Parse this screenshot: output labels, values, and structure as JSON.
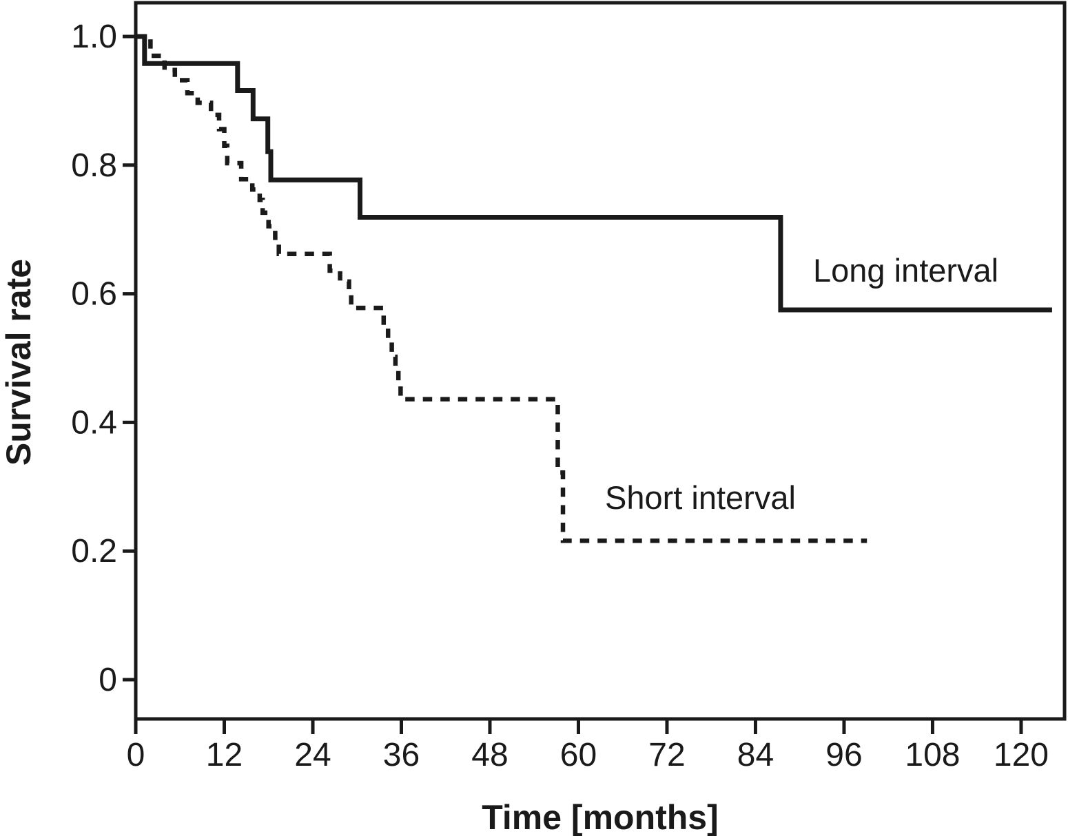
{
  "figure": {
    "background_color": "#ffffff",
    "line_color": "#1a1a1a"
  },
  "chart_data": {
    "type": "line",
    "subtype": "kaplan-meier-step",
    "title": "",
    "xlabel": "Time [months]",
    "ylabel": "Survival rate",
    "xlim": [
      0,
      126
    ],
    "ylim": [
      0,
      1.09
    ],
    "grid": false,
    "legend_position": "inline-annotations",
    "x_ticks": [
      0,
      12,
      24,
      36,
      48,
      60,
      72,
      84,
      96,
      108,
      120
    ],
    "y_ticks": [
      1.0,
      0.8,
      0.6,
      0.4,
      0.2,
      0
    ],
    "y_tick_labels": [
      "1.0",
      "0.8",
      "0.6",
      "0.4",
      "0.2",
      "0"
    ],
    "series": [
      {
        "name": "Long interval",
        "line_style": "solid",
        "color": "#1a1a1a",
        "start": [
          0,
          1.0
        ],
        "steps": [
          [
            1.2,
            0.958
          ],
          [
            13.8,
            0.916
          ],
          [
            15.9,
            0.872
          ],
          [
            17.9,
            0.821
          ],
          [
            18.3,
            0.777
          ],
          [
            30.4,
            0.719
          ],
          [
            87.4,
            0.575
          ]
        ],
        "end_time": 124.2,
        "label_anchor": [
          91.8,
          0.636
        ]
      },
      {
        "name": "Short interval",
        "line_style": "dashed",
        "color": "#1a1a1a",
        "start": [
          0,
          1.0
        ],
        "steps": [
          [
            2.0,
            0.97
          ],
          [
            3.9,
            0.948
          ],
          [
            5.3,
            0.932
          ],
          [
            7.0,
            0.912
          ],
          [
            8.4,
            0.897
          ],
          [
            10.2,
            0.878
          ],
          [
            11.3,
            0.856
          ],
          [
            12.0,
            0.83
          ],
          [
            12.4,
            0.803
          ],
          [
            14.3,
            0.778
          ],
          [
            15.8,
            0.762
          ],
          [
            16.8,
            0.746
          ],
          [
            17.2,
            0.726
          ],
          [
            18.0,
            0.705
          ],
          [
            18.9,
            0.687
          ],
          [
            19.4,
            0.662
          ],
          [
            26.3,
            0.636
          ],
          [
            27.7,
            0.619
          ],
          [
            28.9,
            0.604
          ],
          [
            29.2,
            0.578
          ],
          [
            33.6,
            0.551
          ],
          [
            34.2,
            0.528
          ],
          [
            34.7,
            0.502
          ],
          [
            35.2,
            0.486
          ],
          [
            35.6,
            0.461
          ],
          [
            35.9,
            0.436
          ],
          [
            57.2,
            0.322
          ],
          [
            57.9,
            0.216
          ]
        ],
        "end_time": 99.1,
        "label_anchor": [
          63.6,
          0.283
        ]
      }
    ]
  }
}
